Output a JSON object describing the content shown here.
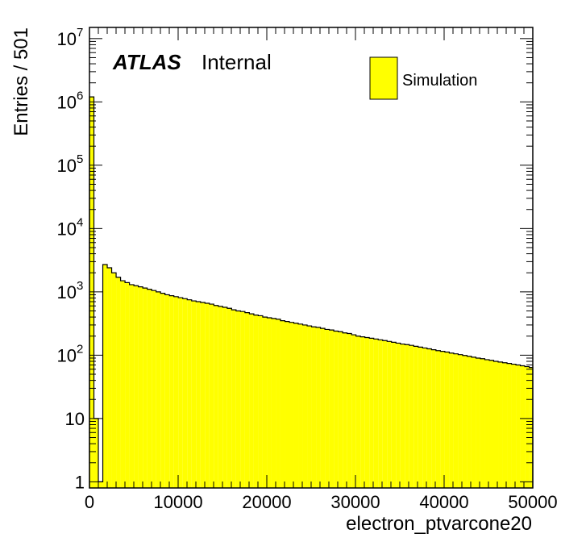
{
  "chart_data": {
    "type": "bar",
    "histogram": true,
    "xlabel": "electron_ptvarcone20",
    "ylabel": "Entries / 501",
    "bin_width": 501,
    "xlim": [
      0,
      50000
    ],
    "ylim": [
      0.8,
      15000000
    ],
    "y_scale": "log",
    "x_ticks": [
      0,
      10000,
      20000,
      30000,
      40000,
      50000
    ],
    "x_tick_labels": [
      "0",
      "10000",
      "20000",
      "30000",
      "40000",
      "50000"
    ],
    "y_ticks": [
      {
        "value": 1,
        "base": "1",
        "exp": ""
      },
      {
        "value": 10,
        "base": "10",
        "exp": ""
      },
      {
        "value": 100,
        "base": "10",
        "exp": "2"
      },
      {
        "value": 1000,
        "base": "10",
        "exp": "3"
      },
      {
        "value": 10000,
        "base": "10",
        "exp": "4"
      },
      {
        "value": 100000,
        "base": "10",
        "exp": "5"
      },
      {
        "value": 1000000,
        "base": "10",
        "exp": "6"
      },
      {
        "value": 10000000,
        "base": "10",
        "exp": "7"
      }
    ],
    "grid": false,
    "legend_position": "top-right",
    "series": [
      {
        "name": "Simulation",
        "color": "#ffff00",
        "values": [
          1200000,
          10,
          1,
          2700,
          2400,
          2000,
          1700,
          1500,
          1400,
          1300,
          1250,
          1200,
          1150,
          1100,
          1050,
          1000,
          950,
          900,
          870,
          840,
          810,
          780,
          750,
          720,
          700,
          680,
          660,
          640,
          610,
          590,
          570,
          550,
          520,
          500,
          490,
          470,
          450,
          430,
          420,
          400,
          390,
          380,
          370,
          350,
          340,
          330,
          320,
          310,
          300,
          290,
          280,
          275,
          265,
          255,
          250,
          240,
          235,
          225,
          220,
          210,
          200,
          195,
          190,
          185,
          180,
          175,
          170,
          165,
          160,
          155,
          150,
          147,
          143,
          138,
          134,
          130,
          126,
          122,
          118,
          115,
          112,
          108,
          105,
          102,
          99,
          96,
          93,
          90,
          88,
          85,
          83,
          80,
          78,
          76,
          74,
          72,
          70,
          68,
          66,
          64
        ]
      }
    ],
    "annotations": [
      {
        "text": "ATLAS",
        "style": "bold-italic"
      },
      {
        "text": "Internal",
        "style": "regular"
      }
    ]
  }
}
